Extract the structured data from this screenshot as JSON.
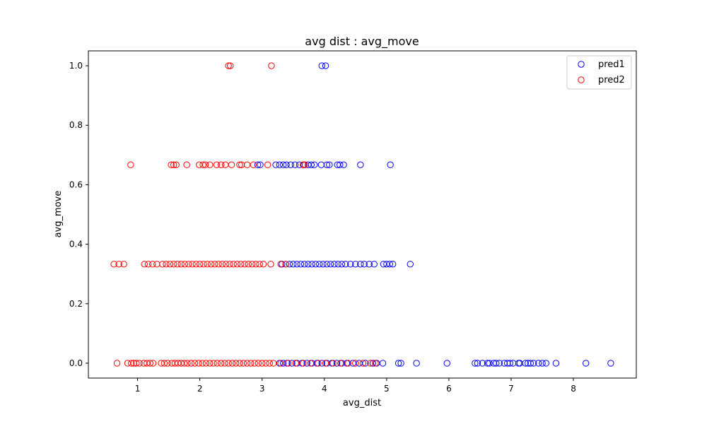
{
  "chart_data": {
    "type": "scatter",
    "title": "avg dist : avg_move",
    "xlabel": "avg_dist",
    "ylabel": "avg_move",
    "xlim": [
      0.21,
      9.01
    ],
    "ylim": [
      -0.05,
      1.05
    ],
    "xticks": [
      1,
      2,
      3,
      4,
      5,
      6,
      7,
      8
    ],
    "xtick_labels": [
      "1",
      "2",
      "3",
      "4",
      "5",
      "6",
      "7",
      "8"
    ],
    "yticks": [
      0.0,
      0.2,
      0.4,
      0.6,
      0.8,
      1.0
    ],
    "ytick_labels": [
      "0.0",
      "0.2",
      "0.4",
      "0.6",
      "0.8",
      "1.0"
    ],
    "grid": false,
    "legend_position": "top-right",
    "series": [
      {
        "name": "pred1",
        "color": "#0000ff",
        "marker": "open-circle",
        "points": [
          [
            3.96,
            1.0
          ],
          [
            4.02,
            1.0
          ],
          [
            2.93,
            0.667
          ],
          [
            2.97,
            0.667
          ],
          [
            3.22,
            0.667
          ],
          [
            3.28,
            0.667
          ],
          [
            3.34,
            0.667
          ],
          [
            3.39,
            0.667
          ],
          [
            3.46,
            0.667
          ],
          [
            3.53,
            0.667
          ],
          [
            3.6,
            0.667
          ],
          [
            3.67,
            0.667
          ],
          [
            3.74,
            0.667
          ],
          [
            3.79,
            0.667
          ],
          [
            3.84,
            0.667
          ],
          [
            3.95,
            0.667
          ],
          [
            4.04,
            0.667
          ],
          [
            4.08,
            0.667
          ],
          [
            4.21,
            0.667
          ],
          [
            4.25,
            0.667
          ],
          [
            4.31,
            0.667
          ],
          [
            4.58,
            0.667
          ],
          [
            5.06,
            0.667
          ],
          [
            3.32,
            0.333
          ],
          [
            3.38,
            0.333
          ],
          [
            3.44,
            0.333
          ],
          [
            3.5,
            0.333
          ],
          [
            3.56,
            0.333
          ],
          [
            3.62,
            0.333
          ],
          [
            3.68,
            0.333
          ],
          [
            3.74,
            0.333
          ],
          [
            3.8,
            0.333
          ],
          [
            3.86,
            0.333
          ],
          [
            3.92,
            0.333
          ],
          [
            3.98,
            0.333
          ],
          [
            4.04,
            0.333
          ],
          [
            4.1,
            0.333
          ],
          [
            4.16,
            0.333
          ],
          [
            4.22,
            0.333
          ],
          [
            4.28,
            0.333
          ],
          [
            4.34,
            0.333
          ],
          [
            4.42,
            0.333
          ],
          [
            4.5,
            0.333
          ],
          [
            4.58,
            0.333
          ],
          [
            4.64,
            0.333
          ],
          [
            4.72,
            0.333
          ],
          [
            4.8,
            0.333
          ],
          [
            4.95,
            0.333
          ],
          [
            5.0,
            0.333
          ],
          [
            5.05,
            0.333
          ],
          [
            5.1,
            0.333
          ],
          [
            5.38,
            0.333
          ],
          [
            3.28,
            0.0
          ],
          [
            3.34,
            0.0
          ],
          [
            3.4,
            0.0
          ],
          [
            3.48,
            0.0
          ],
          [
            3.56,
            0.0
          ],
          [
            3.64,
            0.0
          ],
          [
            3.72,
            0.0
          ],
          [
            3.8,
            0.0
          ],
          [
            3.88,
            0.0
          ],
          [
            3.96,
            0.0
          ],
          [
            4.04,
            0.0
          ],
          [
            4.12,
            0.0
          ],
          [
            4.2,
            0.0
          ],
          [
            4.28,
            0.0
          ],
          [
            4.36,
            0.0
          ],
          [
            4.46,
            0.0
          ],
          [
            4.56,
            0.0
          ],
          [
            4.66,
            0.0
          ],
          [
            4.78,
            0.0
          ],
          [
            4.84,
            0.0
          ],
          [
            4.94,
            0.0
          ],
          [
            5.19,
            0.0
          ],
          [
            5.23,
            0.0
          ],
          [
            5.48,
            0.0
          ],
          [
            5.97,
            0.0
          ],
          [
            6.42,
            0.0
          ],
          [
            6.46,
            0.0
          ],
          [
            6.54,
            0.0
          ],
          [
            6.62,
            0.0
          ],
          [
            6.65,
            0.0
          ],
          [
            6.72,
            0.0
          ],
          [
            6.76,
            0.0
          ],
          [
            6.81,
            0.0
          ],
          [
            6.89,
            0.0
          ],
          [
            6.94,
            0.0
          ],
          [
            6.98,
            0.0
          ],
          [
            7.03,
            0.0
          ],
          [
            7.12,
            0.0
          ],
          [
            7.14,
            0.0
          ],
          [
            7.23,
            0.0
          ],
          [
            7.27,
            0.0
          ],
          [
            7.31,
            0.0
          ],
          [
            7.36,
            0.0
          ],
          [
            7.44,
            0.0
          ],
          [
            7.5,
            0.0
          ],
          [
            7.56,
            0.0
          ],
          [
            7.72,
            0.0
          ],
          [
            8.2,
            0.0
          ],
          [
            8.6,
            0.0
          ]
        ]
      },
      {
        "name": "pred2",
        "color": "#ff0000",
        "marker": "open-circle",
        "points": [
          [
            2.46,
            1.0
          ],
          [
            2.49,
            1.0
          ],
          [
            3.15,
            1.0
          ],
          [
            0.89,
            0.667
          ],
          [
            1.54,
            0.667
          ],
          [
            1.58,
            0.667
          ],
          [
            1.62,
            0.667
          ],
          [
            1.79,
            0.667
          ],
          [
            1.99,
            0.667
          ],
          [
            2.05,
            0.667
          ],
          [
            2.09,
            0.667
          ],
          [
            2.16,
            0.667
          ],
          [
            2.27,
            0.667
          ],
          [
            2.34,
            0.667
          ],
          [
            2.41,
            0.667
          ],
          [
            2.51,
            0.667
          ],
          [
            2.64,
            0.667
          ],
          [
            2.67,
            0.667
          ],
          [
            2.76,
            0.667
          ],
          [
            2.86,
            0.667
          ],
          [
            3.09,
            0.667
          ],
          [
            3.66,
            0.667
          ],
          [
            3.69,
            0.667
          ],
          [
            0.62,
            0.333
          ],
          [
            0.7,
            0.333
          ],
          [
            0.78,
            0.333
          ],
          [
            1.11,
            0.333
          ],
          [
            1.17,
            0.333
          ],
          [
            1.24,
            0.333
          ],
          [
            1.31,
            0.333
          ],
          [
            1.4,
            0.333
          ],
          [
            1.46,
            0.333
          ],
          [
            1.52,
            0.333
          ],
          [
            1.58,
            0.333
          ],
          [
            1.64,
            0.333
          ],
          [
            1.7,
            0.333
          ],
          [
            1.76,
            0.333
          ],
          [
            1.82,
            0.333
          ],
          [
            1.88,
            0.333
          ],
          [
            1.94,
            0.333
          ],
          [
            2.0,
            0.333
          ],
          [
            2.06,
            0.333
          ],
          [
            2.12,
            0.333
          ],
          [
            2.18,
            0.333
          ],
          [
            2.24,
            0.333
          ],
          [
            2.3,
            0.333
          ],
          [
            2.36,
            0.333
          ],
          [
            2.42,
            0.333
          ],
          [
            2.48,
            0.333
          ],
          [
            2.54,
            0.333
          ],
          [
            2.6,
            0.333
          ],
          [
            2.66,
            0.333
          ],
          [
            2.72,
            0.333
          ],
          [
            2.78,
            0.333
          ],
          [
            2.84,
            0.333
          ],
          [
            2.9,
            0.333
          ],
          [
            2.96,
            0.333
          ],
          [
            3.02,
            0.333
          ],
          [
            3.14,
            0.333
          ],
          [
            3.3,
            0.333
          ],
          [
            3.38,
            0.333
          ],
          [
            0.67,
            0.0
          ],
          [
            0.84,
            0.0
          ],
          [
            0.9,
            0.0
          ],
          [
            0.94,
            0.0
          ],
          [
            0.98,
            0.0
          ],
          [
            1.03,
            0.0
          ],
          [
            1.1,
            0.0
          ],
          [
            1.15,
            0.0
          ],
          [
            1.2,
            0.0
          ],
          [
            1.25,
            0.0
          ],
          [
            1.38,
            0.0
          ],
          [
            1.43,
            0.0
          ],
          [
            1.48,
            0.0
          ],
          [
            1.55,
            0.0
          ],
          [
            1.6,
            0.0
          ],
          [
            1.65,
            0.0
          ],
          [
            1.7,
            0.0
          ],
          [
            1.75,
            0.0
          ],
          [
            1.8,
            0.0
          ],
          [
            1.86,
            0.0
          ],
          [
            1.92,
            0.0
          ],
          [
            1.98,
            0.0
          ],
          [
            2.04,
            0.0
          ],
          [
            2.1,
            0.0
          ],
          [
            2.16,
            0.0
          ],
          [
            2.22,
            0.0
          ],
          [
            2.28,
            0.0
          ],
          [
            2.34,
            0.0
          ],
          [
            2.4,
            0.0
          ],
          [
            2.46,
            0.0
          ],
          [
            2.52,
            0.0
          ],
          [
            2.58,
            0.0
          ],
          [
            2.64,
            0.0
          ],
          [
            2.7,
            0.0
          ],
          [
            2.76,
            0.0
          ],
          [
            2.82,
            0.0
          ],
          [
            2.88,
            0.0
          ],
          [
            2.94,
            0.0
          ],
          [
            3.0,
            0.0
          ],
          [
            3.06,
            0.0
          ],
          [
            3.12,
            0.0
          ],
          [
            3.18,
            0.0
          ],
          [
            3.3,
            0.0
          ],
          [
            3.42,
            0.0
          ],
          [
            3.54,
            0.0
          ],
          [
            3.66,
            0.0
          ],
          [
            3.78,
            0.0
          ],
          [
            3.9,
            0.0
          ],
          [
            4.02,
            0.0
          ],
          [
            4.14,
            0.0
          ],
          [
            4.26,
            0.0
          ],
          [
            4.38,
            0.0
          ],
          [
            4.5,
            0.0
          ],
          [
            4.62,
            0.0
          ],
          [
            4.74,
            0.0
          ],
          [
            4.82,
            0.0
          ]
        ]
      }
    ]
  }
}
